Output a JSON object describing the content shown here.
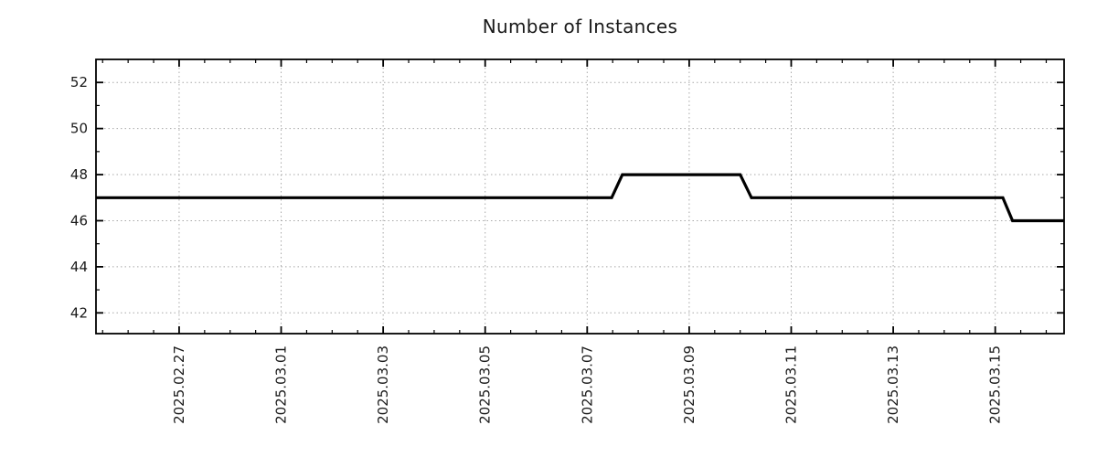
{
  "chart_data": {
    "type": "line",
    "title": "Number of Instances",
    "legend": "none",
    "grid": "dotted",
    "background_color": "#ffffff",
    "grid_color": "#a8a8a8",
    "axis_color": "#000000",
    "label_color": "#1a1a1a",
    "x_unit": "days since 2025-02-25 00:00",
    "xlim": [
      0.37,
      19.35
    ],
    "ylim": [
      41.1,
      53.0
    ],
    "x_ticks": [
      {
        "t": 2,
        "label": "2025.02.27"
      },
      {
        "t": 4,
        "label": "2025.03.01"
      },
      {
        "t": 6,
        "label": "2025.03.03"
      },
      {
        "t": 8,
        "label": "2025.03.05"
      },
      {
        "t": 10,
        "label": "2025.03.07"
      },
      {
        "t": 12,
        "label": "2025.03.09"
      },
      {
        "t": 14,
        "label": "2025.03.11"
      },
      {
        "t": 16,
        "label": "2025.03.13"
      },
      {
        "t": 18,
        "label": "2025.03.15"
      }
    ],
    "x_minor_step": 0.5,
    "y_ticks": [
      {
        "v": 42,
        "label": "42"
      },
      {
        "v": 44,
        "label": "44"
      },
      {
        "v": 46,
        "label": "46"
      },
      {
        "v": 48,
        "label": "48"
      },
      {
        "v": 50,
        "label": "50"
      },
      {
        "v": 52,
        "label": "52"
      }
    ],
    "y_minor_step": 1,
    "series": [
      {
        "name": "instances",
        "color": "#000000",
        "line_width": 3.2,
        "points": [
          [
            0.37,
            47
          ],
          [
            10.48,
            47
          ],
          [
            10.69,
            48
          ],
          [
            13.0,
            48
          ],
          [
            13.22,
            47
          ],
          [
            18.15,
            47
          ],
          [
            18.34,
            46
          ],
          [
            19.35,
            46
          ]
        ]
      }
    ]
  }
}
